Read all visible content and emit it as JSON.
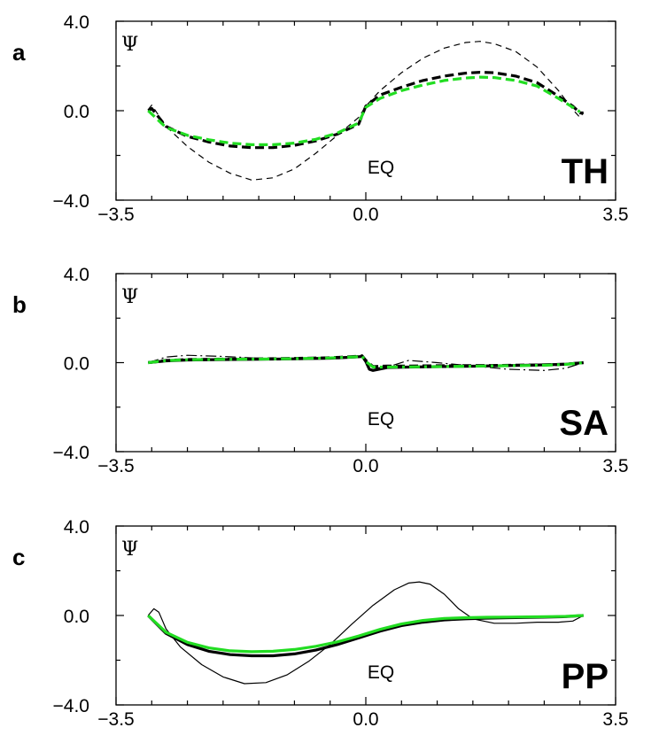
{
  "chart_data": [
    {
      "type": "line",
      "panel_label": "a",
      "ylabel": "Ψ",
      "annotation": "EQ",
      "tag": "TH",
      "xlim": [
        -3.5,
        3.5
      ],
      "ylim": [
        -4.0,
        4.0
      ],
      "xticks": [
        "−3.5",
        "0.0",
        "3.5"
      ],
      "yticks": [
        "4.0",
        "0.0",
        "−4.0"
      ],
      "series": [
        {
          "style": "thin-dashed",
          "color": "#000000",
          "x": [
            -3.05,
            -3.0,
            -2.8,
            -2.5,
            -2.2,
            -1.9,
            -1.6,
            -1.3,
            -1.0,
            -0.7,
            -0.4,
            -0.1,
            0.0,
            0.2,
            0.5,
            0.8,
            1.1,
            1.4,
            1.6,
            1.8,
            2.1,
            2.4,
            2.7,
            2.9,
            3.0,
            3.05
          ],
          "y": [
            0.05,
            0.25,
            -0.7,
            -1.6,
            -2.3,
            -2.8,
            -3.1,
            -3.0,
            -2.6,
            -1.9,
            -1.1,
            -0.3,
            0.2,
            0.9,
            1.7,
            2.35,
            2.8,
            3.05,
            3.1,
            3.0,
            2.65,
            1.95,
            0.9,
            0.05,
            -0.3,
            -0.1
          ]
        },
        {
          "style": "thick-dashed",
          "color": "#000000",
          "x": [
            -3.05,
            -3.0,
            -2.8,
            -2.5,
            -2.2,
            -1.9,
            -1.6,
            -1.3,
            -1.0,
            -0.7,
            -0.4,
            -0.1,
            0.0,
            0.2,
            0.5,
            0.8,
            1.1,
            1.4,
            1.6,
            1.8,
            2.1,
            2.4,
            2.7,
            2.9,
            3.0,
            3.05
          ],
          "y": [
            0.0,
            0.1,
            -0.7,
            -1.15,
            -1.4,
            -1.58,
            -1.65,
            -1.65,
            -1.55,
            -1.35,
            -1.05,
            -0.6,
            0.2,
            0.7,
            1.05,
            1.35,
            1.55,
            1.68,
            1.72,
            1.7,
            1.55,
            1.25,
            0.65,
            0.2,
            -0.1,
            -0.1
          ]
        },
        {
          "style": "thick-dashed",
          "color": "#22dd22",
          "x": [
            -3.05,
            -2.8,
            -2.5,
            -2.2,
            -1.9,
            -1.6,
            -1.3,
            -1.0,
            -0.7,
            -0.4,
            -0.1,
            0.0,
            0.2,
            0.5,
            0.8,
            1.1,
            1.4,
            1.6,
            1.8,
            2.1,
            2.4,
            2.7,
            2.9,
            3.0
          ],
          "y": [
            0.0,
            -0.75,
            -1.1,
            -1.3,
            -1.45,
            -1.52,
            -1.52,
            -1.45,
            -1.28,
            -1.0,
            -0.55,
            0.15,
            0.55,
            0.9,
            1.15,
            1.35,
            1.46,
            1.5,
            1.48,
            1.35,
            1.1,
            0.55,
            0.15,
            -0.05
          ]
        }
      ]
    },
    {
      "type": "line",
      "panel_label": "b",
      "ylabel": "Ψ",
      "annotation": "EQ",
      "tag": "SA",
      "xlim": [
        -3.5,
        3.5
      ],
      "ylim": [
        -4.0,
        4.0
      ],
      "xticks": [
        "−3.5",
        "0.0",
        "3.5"
      ],
      "yticks": [
        "4.0",
        "0.0",
        "−4.0"
      ],
      "series": [
        {
          "style": "thin-dashdot",
          "color": "#000000",
          "x": [
            -3.05,
            -2.8,
            -2.5,
            -2.0,
            -1.5,
            -1.0,
            -0.5,
            -0.15,
            -0.05,
            0.0,
            0.1,
            0.3,
            0.6,
            1.0,
            1.5,
            2.0,
            2.5,
            2.8,
            3.05
          ],
          "y": [
            0.0,
            0.25,
            0.33,
            0.28,
            0.2,
            0.18,
            0.22,
            0.3,
            0.35,
            0.1,
            -0.25,
            -0.2,
            0.1,
            0.0,
            -0.15,
            -0.3,
            -0.35,
            -0.25,
            0.0
          ]
        },
        {
          "style": "thick-solid",
          "color": "#000000",
          "x": [
            -3.05,
            -2.8,
            -2.5,
            -2.0,
            -1.5,
            -1.0,
            -0.5,
            -0.15,
            -0.05,
            0.0,
            0.05,
            0.1,
            0.3,
            0.6,
            1.0,
            1.5,
            2.0,
            2.5,
            2.8,
            3.05
          ],
          "y": [
            0.0,
            0.08,
            0.12,
            0.14,
            0.15,
            0.17,
            0.2,
            0.25,
            0.28,
            0.05,
            -0.3,
            -0.35,
            -0.22,
            -0.2,
            -0.18,
            -0.16,
            -0.13,
            -0.1,
            -0.07,
            0.0
          ]
        },
        {
          "style": "thick-dashed",
          "color": "#000000",
          "x": [
            -3.05,
            -2.8,
            -2.5,
            -2.0,
            -1.5,
            -1.0,
            -0.5,
            -0.15,
            -0.05,
            0.0,
            0.1,
            0.3,
            0.6,
            1.0,
            1.5,
            2.0,
            2.5,
            2.8,
            3.05
          ],
          "y": [
            0.0,
            0.1,
            0.14,
            0.16,
            0.17,
            0.19,
            0.22,
            0.28,
            0.3,
            0.1,
            -0.18,
            -0.15,
            -0.15,
            -0.14,
            -0.13,
            -0.12,
            -0.1,
            -0.07,
            0.0
          ]
        },
        {
          "style": "thick-dashdot",
          "color": "#22dd22",
          "x": [
            -3.05,
            -2.8,
            -2.5,
            -2.0,
            -1.5,
            -1.0,
            -0.5,
            -0.15,
            -0.05,
            0.0,
            0.1,
            0.3,
            0.6,
            1.0,
            1.5,
            2.0,
            2.5,
            2.8,
            3.05
          ],
          "y": [
            0.0,
            0.09,
            0.13,
            0.15,
            0.16,
            0.18,
            0.21,
            0.26,
            0.28,
            0.05,
            -0.2,
            -0.2,
            -0.19,
            -0.18,
            -0.16,
            -0.14,
            -0.12,
            -0.08,
            0.0
          ]
        }
      ]
    },
    {
      "type": "line",
      "panel_label": "c",
      "ylabel": "Ψ",
      "annotation": "EQ",
      "tag": "PP",
      "xlim": [
        -3.5,
        3.5
      ],
      "ylim": [
        -4.0,
        4.0
      ],
      "xticks": [
        "−3.5",
        "0.0",
        "3.5"
      ],
      "yticks": [
        "4.0",
        "0.0",
        "−4.0"
      ],
      "series": [
        {
          "style": "thin-solid",
          "color": "#000000",
          "x": [
            -3.05,
            -2.97,
            -2.9,
            -2.8,
            -2.6,
            -2.3,
            -2.0,
            -1.7,
            -1.4,
            -1.1,
            -0.8,
            -0.5,
            -0.2,
            0.1,
            0.4,
            0.6,
            0.75,
            0.9,
            1.1,
            1.3,
            1.5,
            1.8,
            2.1,
            2.4,
            2.7,
            2.9,
            3.05
          ],
          "y": [
            0.0,
            0.3,
            0.15,
            -0.6,
            -1.4,
            -2.2,
            -2.75,
            -3.05,
            -3.0,
            -2.65,
            -2.05,
            -1.3,
            -0.4,
            0.45,
            1.15,
            1.45,
            1.5,
            1.4,
            0.95,
            0.3,
            -0.15,
            -0.35,
            -0.35,
            -0.3,
            -0.3,
            -0.25,
            0.0
          ]
        },
        {
          "style": "thick-solid",
          "color": "#000000",
          "x": [
            -3.05,
            -2.8,
            -2.5,
            -2.2,
            -1.9,
            -1.6,
            -1.3,
            -1.0,
            -0.7,
            -0.4,
            -0.1,
            0.2,
            0.5,
            0.8,
            1.1,
            1.4,
            1.7,
            2.0,
            2.4,
            2.8,
            3.05
          ],
          "y": [
            0.0,
            -0.8,
            -1.3,
            -1.6,
            -1.75,
            -1.8,
            -1.8,
            -1.72,
            -1.55,
            -1.3,
            -1.0,
            -0.7,
            -0.45,
            -0.3,
            -0.2,
            -0.15,
            -0.12,
            -0.1,
            -0.08,
            -0.05,
            0.0
          ]
        },
        {
          "style": "thick-solid",
          "color": "#22dd22",
          "x": [
            -3.05,
            -2.8,
            -2.5,
            -2.2,
            -1.9,
            -1.6,
            -1.3,
            -1.0,
            -0.7,
            -0.4,
            -0.1,
            0.2,
            0.5,
            0.8,
            1.1,
            1.4,
            1.7,
            2.0,
            2.4,
            2.8,
            3.05
          ],
          "y": [
            0.0,
            -0.75,
            -1.2,
            -1.45,
            -1.58,
            -1.62,
            -1.6,
            -1.52,
            -1.38,
            -1.18,
            -0.92,
            -0.62,
            -0.38,
            -0.22,
            -0.13,
            -0.1,
            -0.08,
            -0.07,
            -0.06,
            -0.04,
            0.0
          ]
        }
      ]
    }
  ]
}
